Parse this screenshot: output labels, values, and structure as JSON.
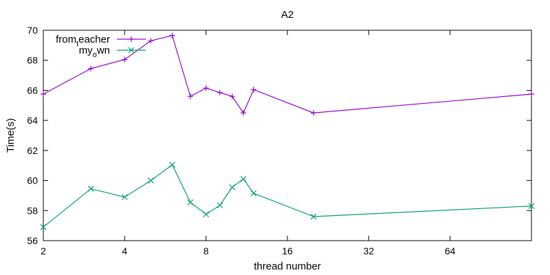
{
  "chart_data": {
    "type": "line",
    "title": "A2",
    "xlabel": "thread number",
    "ylabel": "Time(s)",
    "x_scale": "log2",
    "xlim": [
      2,
      128
    ],
    "ylim": [
      56,
      70
    ],
    "x_ticks": [
      2,
      4,
      8,
      16,
      32,
      64
    ],
    "x_tick_labels": [
      "2",
      "4",
      "8",
      "16",
      "32",
      "64"
    ],
    "y_ticks": [
      56,
      58,
      60,
      62,
      64,
      66,
      68,
      70
    ],
    "y_tick_labels": [
      "56",
      "58",
      "60",
      "62",
      "64",
      "66",
      "68",
      "70"
    ],
    "grid": false,
    "legend_position": "top-left",
    "x": [
      2,
      3,
      4,
      5,
      6,
      7,
      8,
      9,
      10,
      11,
      12,
      20,
      128
    ],
    "series": [
      {
        "name_main": "from",
        "name_sub": "t",
        "name_rest": "eacher",
        "color": "#9400d3",
        "marker": "plus",
        "values": [
          65.75,
          67.45,
          68.05,
          69.3,
          69.65,
          65.6,
          66.15,
          65.85,
          65.6,
          64.5,
          66.05,
          64.5,
          65.75
        ]
      },
      {
        "name_main": "my",
        "name_sub": "o",
        "name_rest": "wn",
        "color": "#009e73",
        "marker": "cross",
        "values": [
          56.9,
          59.45,
          58.9,
          60.0,
          61.05,
          58.55,
          57.75,
          58.35,
          59.55,
          60.1,
          59.15,
          57.6,
          58.3
        ]
      }
    ]
  }
}
